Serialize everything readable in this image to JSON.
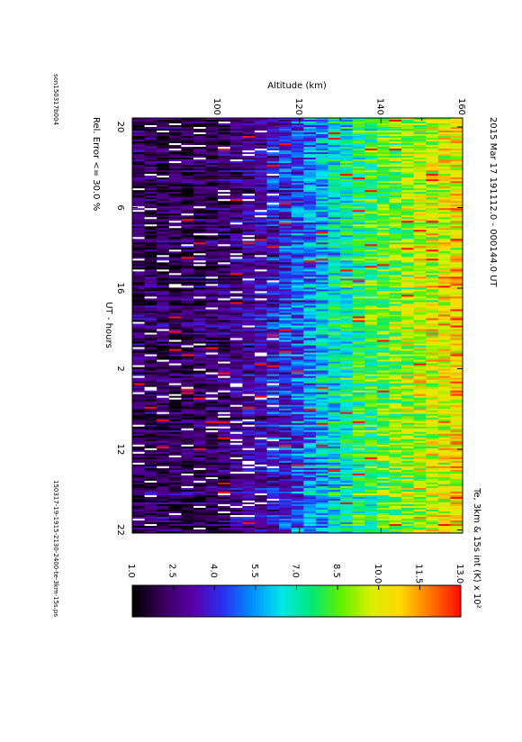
{
  "chart_data": {
    "type": "heatmap",
    "title": "2015 Mar 17   191112.0 - 000144.0 UT",
    "xlabel": "UT - hours",
    "ylabel": "Altitude (km)",
    "x_ticks": [
      "20",
      "6",
      "16",
      "2",
      "12",
      "22"
    ],
    "y_ticks": [
      "100",
      "120",
      "140",
      "160"
    ],
    "ylim": [
      79,
      160
    ],
    "colorbar": {
      "label": "Te, 3km & 15s int (K) x 10²",
      "ticks": [
        "1.0",
        "2.5",
        "4.0",
        "5.5",
        "7.0",
        "8.5",
        "10.0",
        "11.5",
        "13.0"
      ],
      "range": [
        1.0,
        13.0
      ]
    },
    "note_left": "Rel. Error <= 30.0 %",
    "profile": {
      "altitudes_km": [
        80,
        90,
        100,
        110,
        120,
        130,
        140,
        150,
        160
      ],
      "te_k_x100": [
        2.2,
        2.0,
        2.3,
        3.2,
        4.6,
        7.0,
        8.4,
        9.6,
        10.6
      ]
    }
  },
  "footer": {
    "left": "son150317b004",
    "right": "150317-19-1915-2130-2400-te-3km-15s.ps"
  },
  "colors": {
    "scale": [
      "#000000",
      "#3a005e",
      "#5a00a8",
      "#2a2ef0",
      "#0090ff",
      "#00e8e8",
      "#00e878",
      "#60f000",
      "#d8f000",
      "#ffd800",
      "#ff7800",
      "#ff1000"
    ]
  }
}
